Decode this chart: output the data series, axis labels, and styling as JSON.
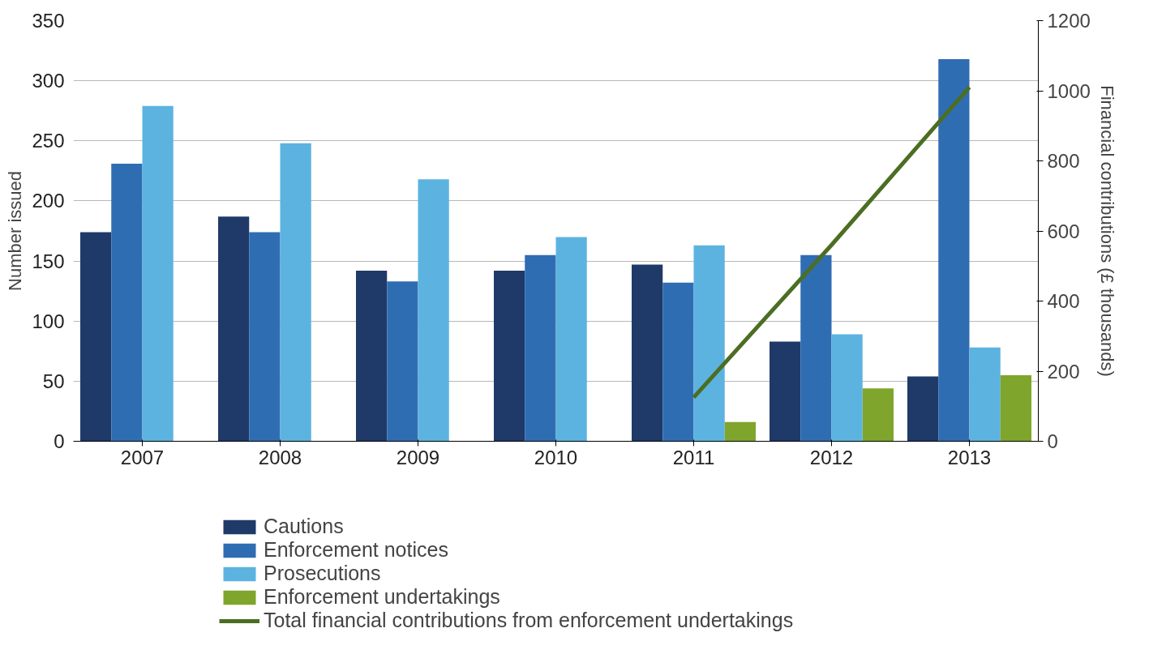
{
  "chart_data": {
    "type": "bar",
    "categories": [
      "2007",
      "2008",
      "2009",
      "2010",
      "2011",
      "2012",
      "2013"
    ],
    "series": [
      {
        "name": "Cautions",
        "color": "#1f3a68",
        "values": [
          174,
          187,
          142,
          142,
          147,
          83,
          54
        ]
      },
      {
        "name": "Enforcement notices",
        "color": "#2f6db3",
        "values": [
          231,
          174,
          133,
          155,
          132,
          155,
          318
        ]
      },
      {
        "name": "Prosecutions",
        "color": "#5cb3e0",
        "values": [
          279,
          248,
          218,
          170,
          163,
          89,
          78
        ]
      },
      {
        "name": "Enforcement undertakings",
        "color": "#7fa52c",
        "values": [
          null,
          null,
          null,
          null,
          16,
          44,
          55
        ]
      },
      {
        "name": "Total financial contributions from enforcement undertakings",
        "color": "#4c6e22",
        "type": "line",
        "axis": "y2",
        "values": [
          null,
          null,
          null,
          null,
          125,
          560,
          1010
        ]
      }
    ],
    "ylabel": "Number issued",
    "y2label": "Financial contributions (£ thousands)",
    "ylim": [
      0,
      350
    ],
    "yticks": [
      0,
      50,
      100,
      150,
      200,
      250,
      300,
      350
    ],
    "y2lim": [
      0,
      1200
    ],
    "y2ticks": [
      0,
      200,
      400,
      600,
      800,
      1000,
      1200
    ],
    "grid": "y",
    "legend": "bottom",
    "line_style": "solid",
    "marker": "none"
  }
}
